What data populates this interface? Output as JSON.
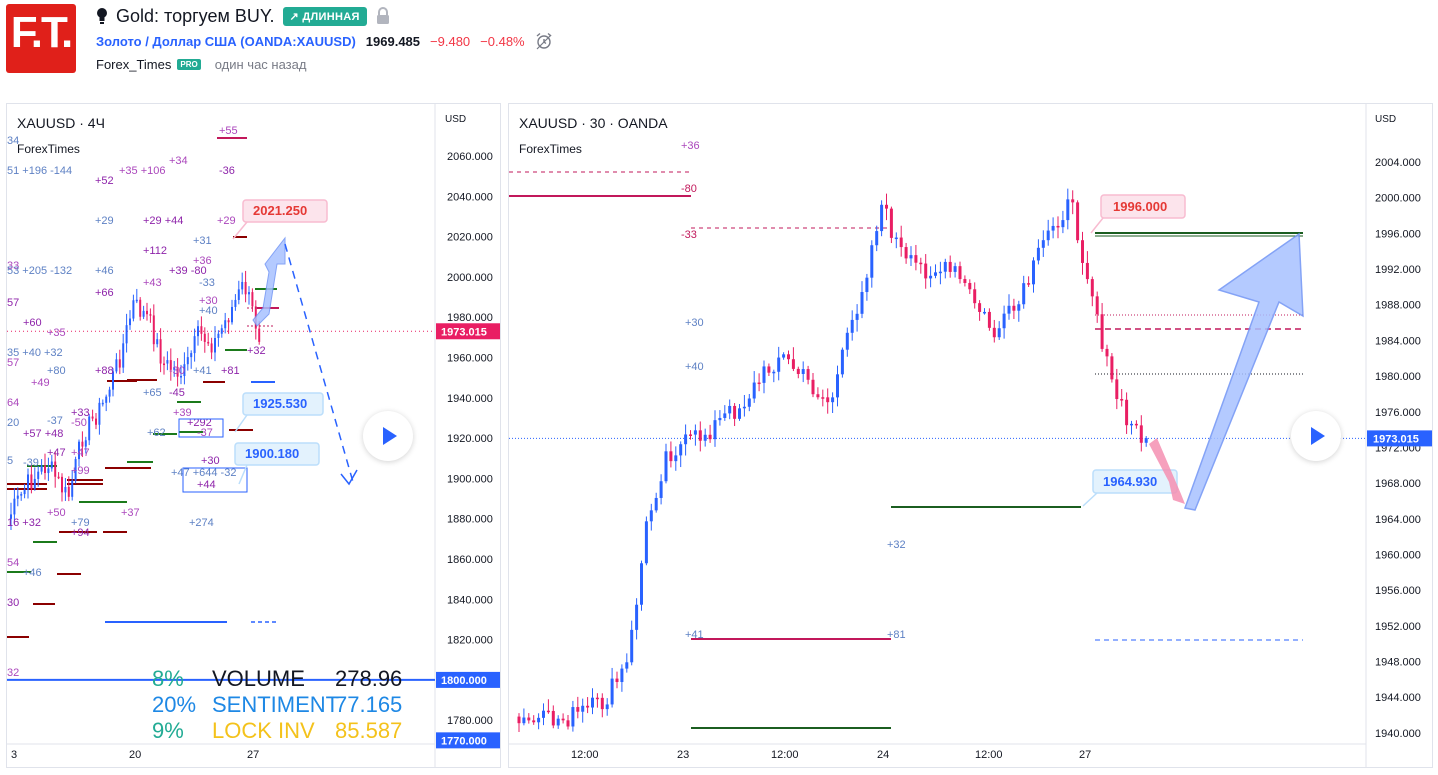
{
  "header": {
    "logo_text": "F.T.",
    "title": "Gold: торгуем BUY.",
    "direction_badge": "↗ ДЛИННАЯ",
    "symbol_name": "Золото / Доллар США",
    "symbol_ticker": "(OANDA:XAUUSD)",
    "price": "1969.485",
    "change": "−9.480",
    "change_pct": "−0.48%",
    "author": "Forex_Times",
    "author_badge": "PRO",
    "time_ago": "один час назад",
    "colors": {
      "brand": "#e0201a",
      "long": "#22ab94",
      "link": "#2962ff",
      "negative": "#f23645"
    }
  },
  "left_chart": {
    "title": "XAUUSD · 4Ч",
    "subtitle": "ForexTimes",
    "currency": "USD",
    "price_axis": [
      "2060.000",
      "2040.000",
      "2020.000",
      "2000.000",
      "1980.000",
      "1960.000",
      "1940.000",
      "1920.000",
      "1900.000",
      "1880.000",
      "1860.000",
      "1840.000",
      "1820.000",
      "1800.000",
      "1780.000"
    ],
    "axis_values": [
      2060,
      2040,
      2020,
      2000,
      1980,
      1960,
      1940,
      1920,
      1900,
      1880,
      1860,
      1840,
      1820,
      1800,
      1780
    ],
    "current_price": "1973.015",
    "current_value": 1973.015,
    "level_1800": "1800.000",
    "level_1770": "1770.000",
    "time_axis": [
      "3",
      "20",
      "27"
    ],
    "targets": [
      {
        "label": "2021.250",
        "value": 2021.25
      },
      {
        "label": "1925.530",
        "value": 1925.53
      },
      {
        "label": "1900.180",
        "value": 1900.18
      }
    ],
    "annotations": [
      "+55",
      "34",
      "-36",
      "+34",
      "51 +196 -144",
      "+52",
      "+35 +106",
      "+29",
      "+29 +44",
      "+29",
      "+31",
      "+112",
      "+36",
      "+46",
      "+39 -80",
      "33",
      "53 +205 -132",
      "+66",
      "+43",
      "-33",
      "57",
      "+30",
      "+40",
      "+60",
      "+35",
      "35 +40 +32",
      "+32",
      "57",
      "+80",
      "+88",
      "-30",
      "+41",
      "+81",
      "+49",
      "+65",
      "-45",
      "64",
      "-37",
      "+33",
      "+39",
      "20",
      "+57 +48",
      "-50",
      "+62",
      "+292",
      "-37",
      "5",
      "+47",
      "+47",
      "-39",
      "+30",
      "+99",
      "+47 +644 -32",
      "+44",
      "+50",
      "+79",
      "+94",
      "+37",
      "+274",
      "16 +32",
      "54",
      "+46",
      "30",
      "32"
    ],
    "stats": [
      {
        "pct": "8%",
        "label": "VOLUME",
        "value": "278.96",
        "color": "#22ab94"
      },
      {
        "pct": "20%",
        "label": "SENTIMENT",
        "value": "77.165",
        "color": "#1e88e5"
      },
      {
        "pct": "9%",
        "label": "LOCK INV",
        "value": "85.587",
        "color": "#f4c21b"
      }
    ]
  },
  "right_chart": {
    "title": "XAUUSD · 30 · OANDA",
    "subtitle": "ForexTimes",
    "currency": "USD",
    "price_axis": [
      "2004.000",
      "2000.000",
      "1996.000",
      "1992.000",
      "1988.000",
      "1984.000",
      "1980.000",
      "1976.000",
      "1972.000",
      "1968.000",
      "1964.000",
      "1960.000",
      "1956.000",
      "1952.000",
      "1948.000",
      "1944.000",
      "1940.000"
    ],
    "axis_values": [
      2004,
      2000,
      1996,
      1992,
      1988,
      1984,
      1980,
      1976,
      1972,
      1968,
      1964,
      1960,
      1956,
      1952,
      1948,
      1944,
      1940
    ],
    "current_price": "1973.015",
    "current_value": 1973.015,
    "time_axis": [
      "12:00",
      "23",
      "12:00",
      "24",
      "12:00",
      "27"
    ],
    "targets": [
      {
        "label": "1996.000",
        "value": 1996.0
      },
      {
        "label": "1964.930",
        "value": 1964.93
      }
    ],
    "annotations": [
      "+36",
      "-80",
      "-33",
      "+30",
      "+40",
      "+32",
      "+41",
      "+81"
    ]
  }
}
